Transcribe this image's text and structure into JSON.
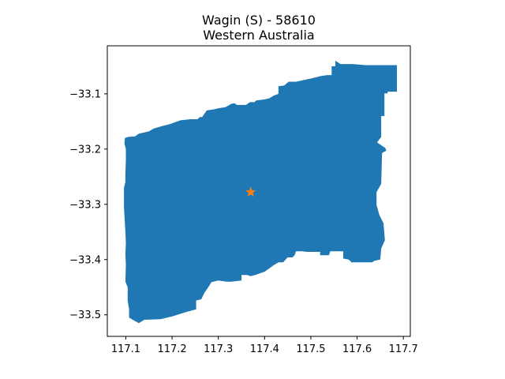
{
  "title": {
    "line1": "Wagin (S) - 58610",
    "line2": "Western Australia"
  },
  "colors": {
    "region_fill": "#1f77b4",
    "centroid_marker": "#ff7f0e",
    "axes": "#000000",
    "background": "#ffffff"
  },
  "chart_data": {
    "type": "map",
    "region_name": "Wagin (S) - 58610",
    "state": "Western Australia",
    "xlim": [
      117.06,
      117.715
    ],
    "ylim": [
      -33.539,
      -33.013
    ],
    "x_ticks": [
      {
        "value": 117.1,
        "label": "117.1"
      },
      {
        "value": 117.2,
        "label": "117.2"
      },
      {
        "value": 117.3,
        "label": "117.3"
      },
      {
        "value": 117.4,
        "label": "117.4"
      },
      {
        "value": 117.5,
        "label": "117.5"
      },
      {
        "value": 117.6,
        "label": "117.6"
      },
      {
        "value": 117.7,
        "label": "117.7"
      }
    ],
    "y_ticks": [
      {
        "value": -33.1,
        "label": "−33.1"
      },
      {
        "value": -33.2,
        "label": "−33.2"
      },
      {
        "value": -33.3,
        "label": "−33.3"
      },
      {
        "value": -33.4,
        "label": "−33.4"
      },
      {
        "value": -33.5,
        "label": "−33.5"
      }
    ],
    "centroid": {
      "lon": 117.37,
      "lat": -33.278,
      "marker": "star"
    },
    "boundary": [
      [
        117.553,
        -33.04
      ],
      [
        117.564,
        -33.046
      ],
      [
        117.59,
        -33.046
      ],
      [
        117.618,
        -33.048
      ],
      [
        117.686,
        -33.048
      ],
      [
        117.686,
        -33.096
      ],
      [
        117.666,
        -33.096
      ],
      [
        117.666,
        -33.099
      ],
      [
        117.659,
        -33.099
      ],
      [
        117.659,
        -33.14
      ],
      [
        117.652,
        -33.14
      ],
      [
        117.652,
        -33.178
      ],
      [
        117.643,
        -33.188
      ],
      [
        117.661,
        -33.198
      ],
      [
        117.663,
        -33.203
      ],
      [
        117.654,
        -33.207
      ],
      [
        117.652,
        -33.263
      ],
      [
        117.642,
        -33.278
      ],
      [
        117.642,
        -33.301
      ],
      [
        117.648,
        -33.319
      ],
      [
        117.657,
        -33.334
      ],
      [
        117.66,
        -33.365
      ],
      [
        117.652,
        -33.38
      ],
      [
        117.65,
        -33.4
      ],
      [
        117.638,
        -33.402
      ],
      [
        117.632,
        -33.405
      ],
      [
        117.588,
        -33.405
      ],
      [
        117.582,
        -33.4
      ],
      [
        117.57,
        -33.398
      ],
      [
        117.57,
        -33.385
      ],
      [
        117.542,
        -33.385
      ],
      [
        117.539,
        -33.392
      ],
      [
        117.52,
        -33.392
      ],
      [
        117.52,
        -33.386
      ],
      [
        117.492,
        -33.386
      ],
      [
        117.48,
        -33.385
      ],
      [
        117.468,
        -33.385
      ],
      [
        117.465,
        -33.392
      ],
      [
        117.46,
        -33.396
      ],
      [
        117.45,
        -33.396
      ],
      [
        117.44,
        -33.405
      ],
      [
        117.43,
        -33.405
      ],
      [
        117.42,
        -33.41
      ],
      [
        117.4,
        -33.422
      ],
      [
        117.38,
        -33.428
      ],
      [
        117.37,
        -33.43
      ],
      [
        117.362,
        -33.428
      ],
      [
        117.35,
        -33.428
      ],
      [
        117.35,
        -33.438
      ],
      [
        117.328,
        -33.44
      ],
      [
        117.318,
        -33.44
      ],
      [
        117.3,
        -33.438
      ],
      [
        117.285,
        -33.441
      ],
      [
        117.28,
        -33.448
      ],
      [
        117.27,
        -33.46
      ],
      [
        117.263,
        -33.472
      ],
      [
        117.252,
        -33.474
      ],
      [
        117.252,
        -33.49
      ],
      [
        117.23,
        -33.495
      ],
      [
        117.2,
        -33.503
      ],
      [
        117.175,
        -33.508
      ],
      [
        117.14,
        -33.509
      ],
      [
        117.128,
        -33.515
      ],
      [
        117.115,
        -33.509
      ],
      [
        117.107,
        -33.505
      ],
      [
        117.107,
        -33.49
      ],
      [
        117.104,
        -33.475
      ],
      [
        117.104,
        -33.45
      ],
      [
        117.099,
        -33.44
      ],
      [
        117.1,
        -33.41
      ],
      [
        117.099,
        -33.39
      ],
      [
        117.1,
        -33.37
      ],
      [
        117.099,
        -33.35
      ],
      [
        117.098,
        -33.335
      ],
      [
        117.096,
        -33.305
      ],
      [
        117.096,
        -33.27
      ],
      [
        117.099,
        -33.26
      ],
      [
        117.099,
        -33.245
      ],
      [
        117.1,
        -33.22
      ],
      [
        117.1,
        -33.2
      ],
      [
        117.097,
        -33.19
      ],
      [
        117.098,
        -33.18
      ],
      [
        117.105,
        -33.178
      ],
      [
        117.12,
        -33.177
      ],
      [
        117.128,
        -33.172
      ],
      [
        117.14,
        -33.17
      ],
      [
        117.15,
        -33.168
      ],
      [
        117.16,
        -33.163
      ],
      [
        117.18,
        -33.158
      ],
      [
        117.195,
        -33.155
      ],
      [
        117.218,
        -33.148
      ],
      [
        117.24,
        -33.146
      ],
      [
        117.255,
        -33.146
      ],
      [
        117.26,
        -33.142
      ],
      [
        117.265,
        -33.142
      ],
      [
        117.275,
        -33.13
      ],
      [
        117.29,
        -33.128
      ],
      [
        117.3,
        -33.126
      ],
      [
        117.315,
        -33.124
      ],
      [
        117.32,
        -33.122
      ],
      [
        117.328,
        -33.118
      ],
      [
        117.335,
        -33.117
      ],
      [
        117.34,
        -33.12
      ],
      [
        117.36,
        -33.12
      ],
      [
        117.368,
        -33.115
      ],
      [
        117.378,
        -33.115
      ],
      [
        117.382,
        -33.112
      ],
      [
        117.4,
        -33.11
      ],
      [
        117.41,
        -33.108
      ],
      [
        117.42,
        -33.103
      ],
      [
        117.43,
        -33.1
      ],
      [
        117.43,
        -33.086
      ],
      [
        117.442,
        -33.085
      ],
      [
        117.452,
        -33.078
      ],
      [
        117.468,
        -33.078
      ],
      [
        117.484,
        -33.075
      ],
      [
        117.502,
        -33.072
      ],
      [
        117.52,
        -33.068
      ],
      [
        117.535,
        -33.066
      ],
      [
        117.545,
        -33.066
      ],
      [
        117.545,
        -33.05
      ],
      [
        117.553,
        -33.05
      ]
    ]
  }
}
